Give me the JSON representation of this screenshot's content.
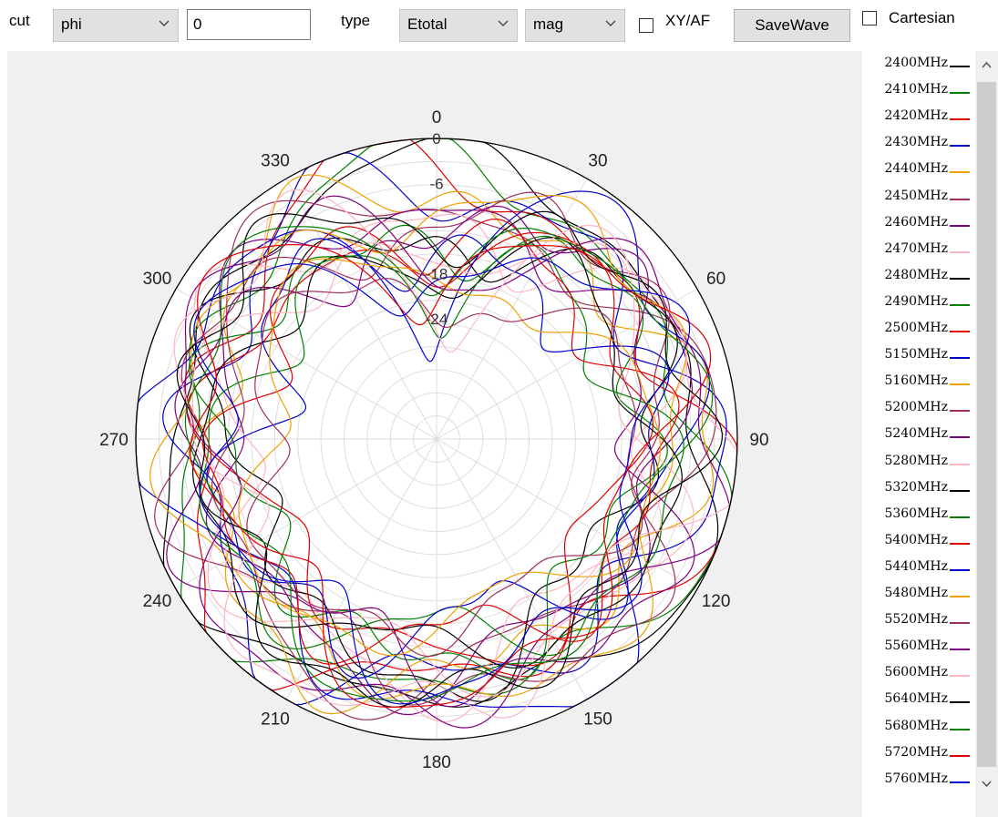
{
  "toolbar": {
    "cut_label": "cut",
    "cut_value": "phi",
    "angle_value": "0",
    "type_label": "type",
    "type_value": "Etotal",
    "mode_value": "mag",
    "xyaf_label": "XY/AF",
    "savewave_label": "SaveWave",
    "cartesian_label": "Cartesian"
  },
  "chart_data": {
    "type": "polar-line",
    "angle_ticks": [
      "0",
      "30",
      "60",
      "90",
      "120",
      "150",
      "180",
      "210",
      "240",
      "270",
      "300",
      "330"
    ],
    "radial_ticks": [
      0,
      -6,
      -18,
      -24
    ],
    "radial_range": [
      -40,
      0
    ],
    "grid": true,
    "legend_placement": "right",
    "series": [
      {
        "name": "2400MHz",
        "color": "#000000"
      },
      {
        "name": "2410MHz",
        "color": "#008000"
      },
      {
        "name": "2420MHz",
        "color": "#e00000"
      },
      {
        "name": "2430MHz",
        "color": "#0000cc"
      },
      {
        "name": "2440MHz",
        "color": "#f0a000"
      },
      {
        "name": "2450MHz",
        "color": "#a0305a"
      },
      {
        "name": "2460MHz",
        "color": "#800080"
      },
      {
        "name": "2470MHz",
        "color": "#ffb6c1"
      },
      {
        "name": "2480MHz",
        "color": "#000000"
      },
      {
        "name": "2490MHz",
        "color": "#008000"
      },
      {
        "name": "2500MHz",
        "color": "#e00000"
      },
      {
        "name": "5150MHz",
        "color": "#0000cc"
      },
      {
        "name": "5160MHz",
        "color": "#f0a000"
      },
      {
        "name": "5200MHz",
        "color": "#a0305a"
      },
      {
        "name": "5240MHz",
        "color": "#800080"
      },
      {
        "name": "5280MHz",
        "color": "#ffb6c1"
      },
      {
        "name": "5320MHz",
        "color": "#000000"
      },
      {
        "name": "5360MHz",
        "color": "#008000"
      },
      {
        "name": "5400MHz",
        "color": "#e00000"
      },
      {
        "name": "5440MHz",
        "color": "#0000cc"
      },
      {
        "name": "5480MHz",
        "color": "#f0a000"
      },
      {
        "name": "5520MHz",
        "color": "#a0305a"
      },
      {
        "name": "5560MHz",
        "color": "#800080"
      },
      {
        "name": "5600MHz",
        "color": "#ffb6c1"
      },
      {
        "name": "5640MHz",
        "color": "#000000"
      },
      {
        "name": "5680MHz",
        "color": "#008000"
      },
      {
        "name": "5720MHz",
        "color": "#e00000"
      },
      {
        "name": "5760MHz",
        "color": "#0000cc"
      }
    ]
  }
}
